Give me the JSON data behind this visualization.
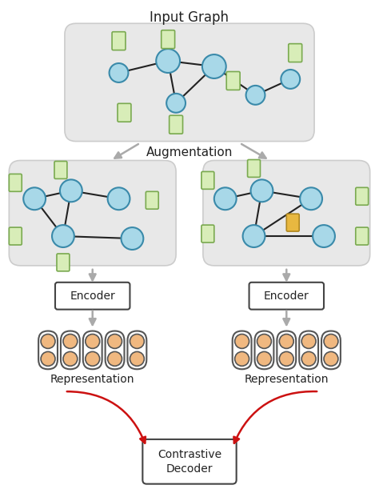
{
  "title": "Input Graph",
  "augmentation_label": "Augmentation",
  "encoder_label": "Encoder",
  "representation_label": "Representation",
  "contrastive_label": "Contrastive\nDecoder",
  "bg_color": "#e8e8e8",
  "node_color": "#a8d8e8",
  "node_edge_color": "#3a8aaa",
  "feat_color": "#d8edb8",
  "feat_edge_color": "#7aaa50",
  "feat_highlight_color": "#e8b840",
  "feat_highlight_edge": "#b08820",
  "repr_fill": "#f0b880",
  "repr_edge": "#555555",
  "arrow_color": "#aaaaaa",
  "red_arrow_color": "#cc1111",
  "box_color": "#ffffff",
  "box_edge": "#444444",
  "text_color": "#222222"
}
